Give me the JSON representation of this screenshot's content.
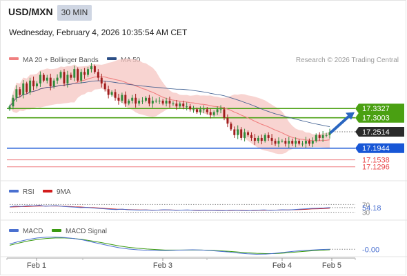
{
  "header": {
    "pair": "USD/MXN",
    "timeframe": "30 MIN",
    "timestamp": "Wednesday, February 4, 2026 10:35:54 AM CET",
    "credit": "Research © 2026 Trading Central"
  },
  "legend": {
    "ma20_label": "MA 20 + Bollinger Bands",
    "ma50_label": "MA 50",
    "rsi_label": "RSI",
    "rsi_ma_label": "9MA",
    "macd_label": "MACD",
    "macd_signal_label": "MACD Signal"
  },
  "colors": {
    "price_up": "#2e8b3a",
    "price_down": "#a01d1d",
    "ma20": "#f08080",
    "bollinger_fill": "#f6c6c2",
    "ma50": "#2c4f86",
    "resistance": "#4aa012",
    "pivot": "#1756d6",
    "support": "#e8474a",
    "rsi": "#4a70d0",
    "rsi_ma": "#d21c1c",
    "macd": "#4a70d0",
    "macd_signal": "#3a9a10",
    "dark_tag": "#2a2a2a"
  },
  "chart_data": [
    {
      "type": "candlestick",
      "series": [
        {
          "name": "MA 20 + Bollinger Bands"
        },
        {
          "name": "MA 50"
        }
      ],
      "x_ticks": [
        "Feb 1",
        "Feb 3",
        "Feb 4",
        "Feb 5"
      ],
      "ylim": [
        17.1,
        17.48
      ],
      "price_tags": [
        {
          "label": "17.3327",
          "kind": "resistance"
        },
        {
          "label": "17.3003",
          "kind": "resistance"
        },
        {
          "label": "17.2514",
          "kind": "last"
        },
        {
          "label": "17.1944",
          "kind": "pivot"
        },
        {
          "label": "17.1538",
          "kind": "support"
        },
        {
          "label": "17.1296",
          "kind": "support"
        }
      ],
      "closes": [
        17.34,
        17.37,
        17.4,
        17.38,
        17.42,
        17.39,
        17.43,
        17.41,
        17.42,
        17.45,
        17.43,
        17.44,
        17.41,
        17.43,
        17.44,
        17.46,
        17.42,
        17.45,
        17.44,
        17.47,
        17.43,
        17.46,
        17.45,
        17.47,
        17.48,
        17.46,
        17.44,
        17.42,
        17.4,
        17.38,
        17.39,
        17.37,
        17.36,
        17.38,
        17.35,
        17.36,
        17.37,
        17.35,
        17.36,
        17.36,
        17.37,
        17.35,
        17.36,
        17.36,
        17.36,
        17.35,
        17.36,
        17.35,
        17.35,
        17.34,
        17.35,
        17.34,
        17.34,
        17.33,
        17.33,
        17.32,
        17.33,
        17.33,
        17.32,
        17.31,
        17.32,
        17.33,
        17.33,
        17.3,
        17.28,
        17.26,
        17.24,
        17.26,
        17.23,
        17.25,
        17.24,
        17.23,
        17.22,
        17.23,
        17.22,
        17.24,
        17.23,
        17.22,
        17.21,
        17.22,
        17.22,
        17.21,
        17.22,
        17.21,
        17.22,
        17.21,
        17.21,
        17.22,
        17.21,
        17.22,
        17.24,
        17.23,
        17.24,
        17.24,
        17.25
      ],
      "forecast_arrow": {
        "from": 17.25,
        "to": 17.32
      }
    },
    {
      "type": "line",
      "title": "RSI",
      "series": [
        {
          "name": "RSI"
        },
        {
          "name": "9MA"
        }
      ],
      "levels": [
        70,
        30
      ],
      "y_tick_labels": [
        "70",
        "30"
      ],
      "ylim": [
        0,
        100
      ],
      "last_value_label": "54.18",
      "rsi": [
        58,
        62,
        60,
        64,
        63,
        66,
        61,
        63,
        64,
        60,
        58,
        56,
        54,
        55,
        52,
        50,
        48,
        45,
        44,
        46,
        43,
        42,
        41,
        42,
        40,
        41,
        43,
        42,
        40,
        41,
        42,
        40,
        39,
        41,
        40,
        39,
        38,
        40,
        41,
        39,
        38,
        40,
        41,
        42,
        40,
        41,
        43,
        42,
        44,
        46,
        48,
        50,
        51,
        52,
        54
      ],
      "rsi_ma": [
        57,
        58,
        59,
        60,
        61,
        62,
        62,
        62,
        62,
        61,
        60,
        58,
        57,
        55,
        54,
        52,
        50,
        48,
        46,
        45,
        44,
        43,
        42,
        42,
        41,
        41,
        42,
        42,
        41,
        41,
        41,
        41,
        40,
        40,
        40,
        40,
        39,
        39,
        40,
        40,
        39,
        39,
        40,
        40,
        41,
        41,
        42,
        42,
        43,
        44,
        45,
        47,
        48,
        49,
        51
      ]
    },
    {
      "type": "line",
      "title": "MACD",
      "series": [
        {
          "name": "MACD"
        },
        {
          "name": "MACD Signal"
        }
      ],
      "last_value_label": "-0.00",
      "macd": [
        0.02,
        0.03,
        0.038,
        0.044,
        0.047,
        0.048,
        0.046,
        0.042,
        0.036,
        0.028,
        0.02,
        0.012,
        0.005,
        0.0,
        -0.003,
        -0.005,
        -0.006,
        -0.006,
        -0.005,
        -0.004,
        -0.003,
        -0.004,
        -0.006,
        -0.009,
        -0.012,
        -0.016,
        -0.019,
        -0.021,
        -0.02,
        -0.017,
        -0.013,
        -0.009,
        -0.006,
        -0.004,
        -0.002,
        -0.001
      ],
      "macd_signal": [
        0.015,
        0.024,
        0.032,
        0.038,
        0.042,
        0.044,
        0.044,
        0.042,
        0.038,
        0.032,
        0.026,
        0.019,
        0.012,
        0.007,
        0.003,
        0.0,
        -0.002,
        -0.004,
        -0.004,
        -0.004,
        -0.004,
        -0.004,
        -0.005,
        -0.007,
        -0.009,
        -0.012,
        -0.015,
        -0.017,
        -0.018,
        -0.018,
        -0.016,
        -0.013,
        -0.01,
        -0.007,
        -0.005,
        -0.003
      ]
    }
  ]
}
